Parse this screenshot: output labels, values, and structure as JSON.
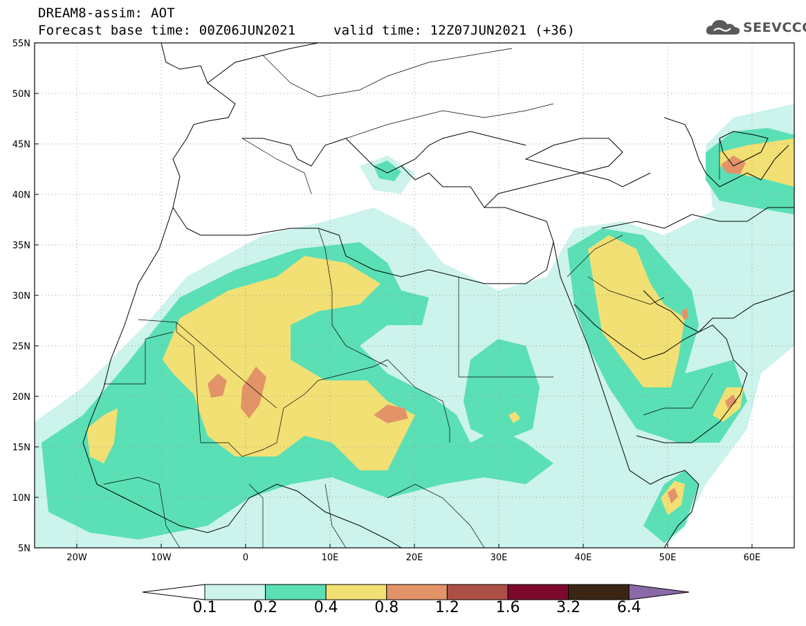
{
  "title": {
    "line1": "DREAM8-assim: AOT",
    "line2": "Forecast base time: 00Z06JUN2021",
    "line3": "valid time: 12Z07JUN2021 (+36)"
  },
  "logo": {
    "text": "SEEVCCC",
    "icon": "cloud-icon"
  },
  "map": {
    "variable": "AOT",
    "lon_range": [
      -25,
      65
    ],
    "lat_range": [
      5,
      55
    ],
    "lon_ticks": [
      "20W",
      "10W",
      "0",
      "10E",
      "20E",
      "30E",
      "40E",
      "50E",
      "60E"
    ],
    "lat_ticks": [
      "55N",
      "50N",
      "45N",
      "40N",
      "35N",
      "30N",
      "25N",
      "20N",
      "15N",
      "10N",
      "5N"
    ],
    "grid": true
  },
  "colorbar": {
    "labels": [
      "0.1",
      "0.2",
      "0.4",
      "0.8",
      "1.2",
      "1.6",
      "3.2",
      "6.4"
    ],
    "colors": [
      "#ccf3ec",
      "#5bdfb5",
      "#f2e074",
      "#e29468",
      "#ac5046",
      "#7d0a2d",
      "#3b2616",
      "#8a6aa6"
    ],
    "under_color": "#ffffff"
  }
}
